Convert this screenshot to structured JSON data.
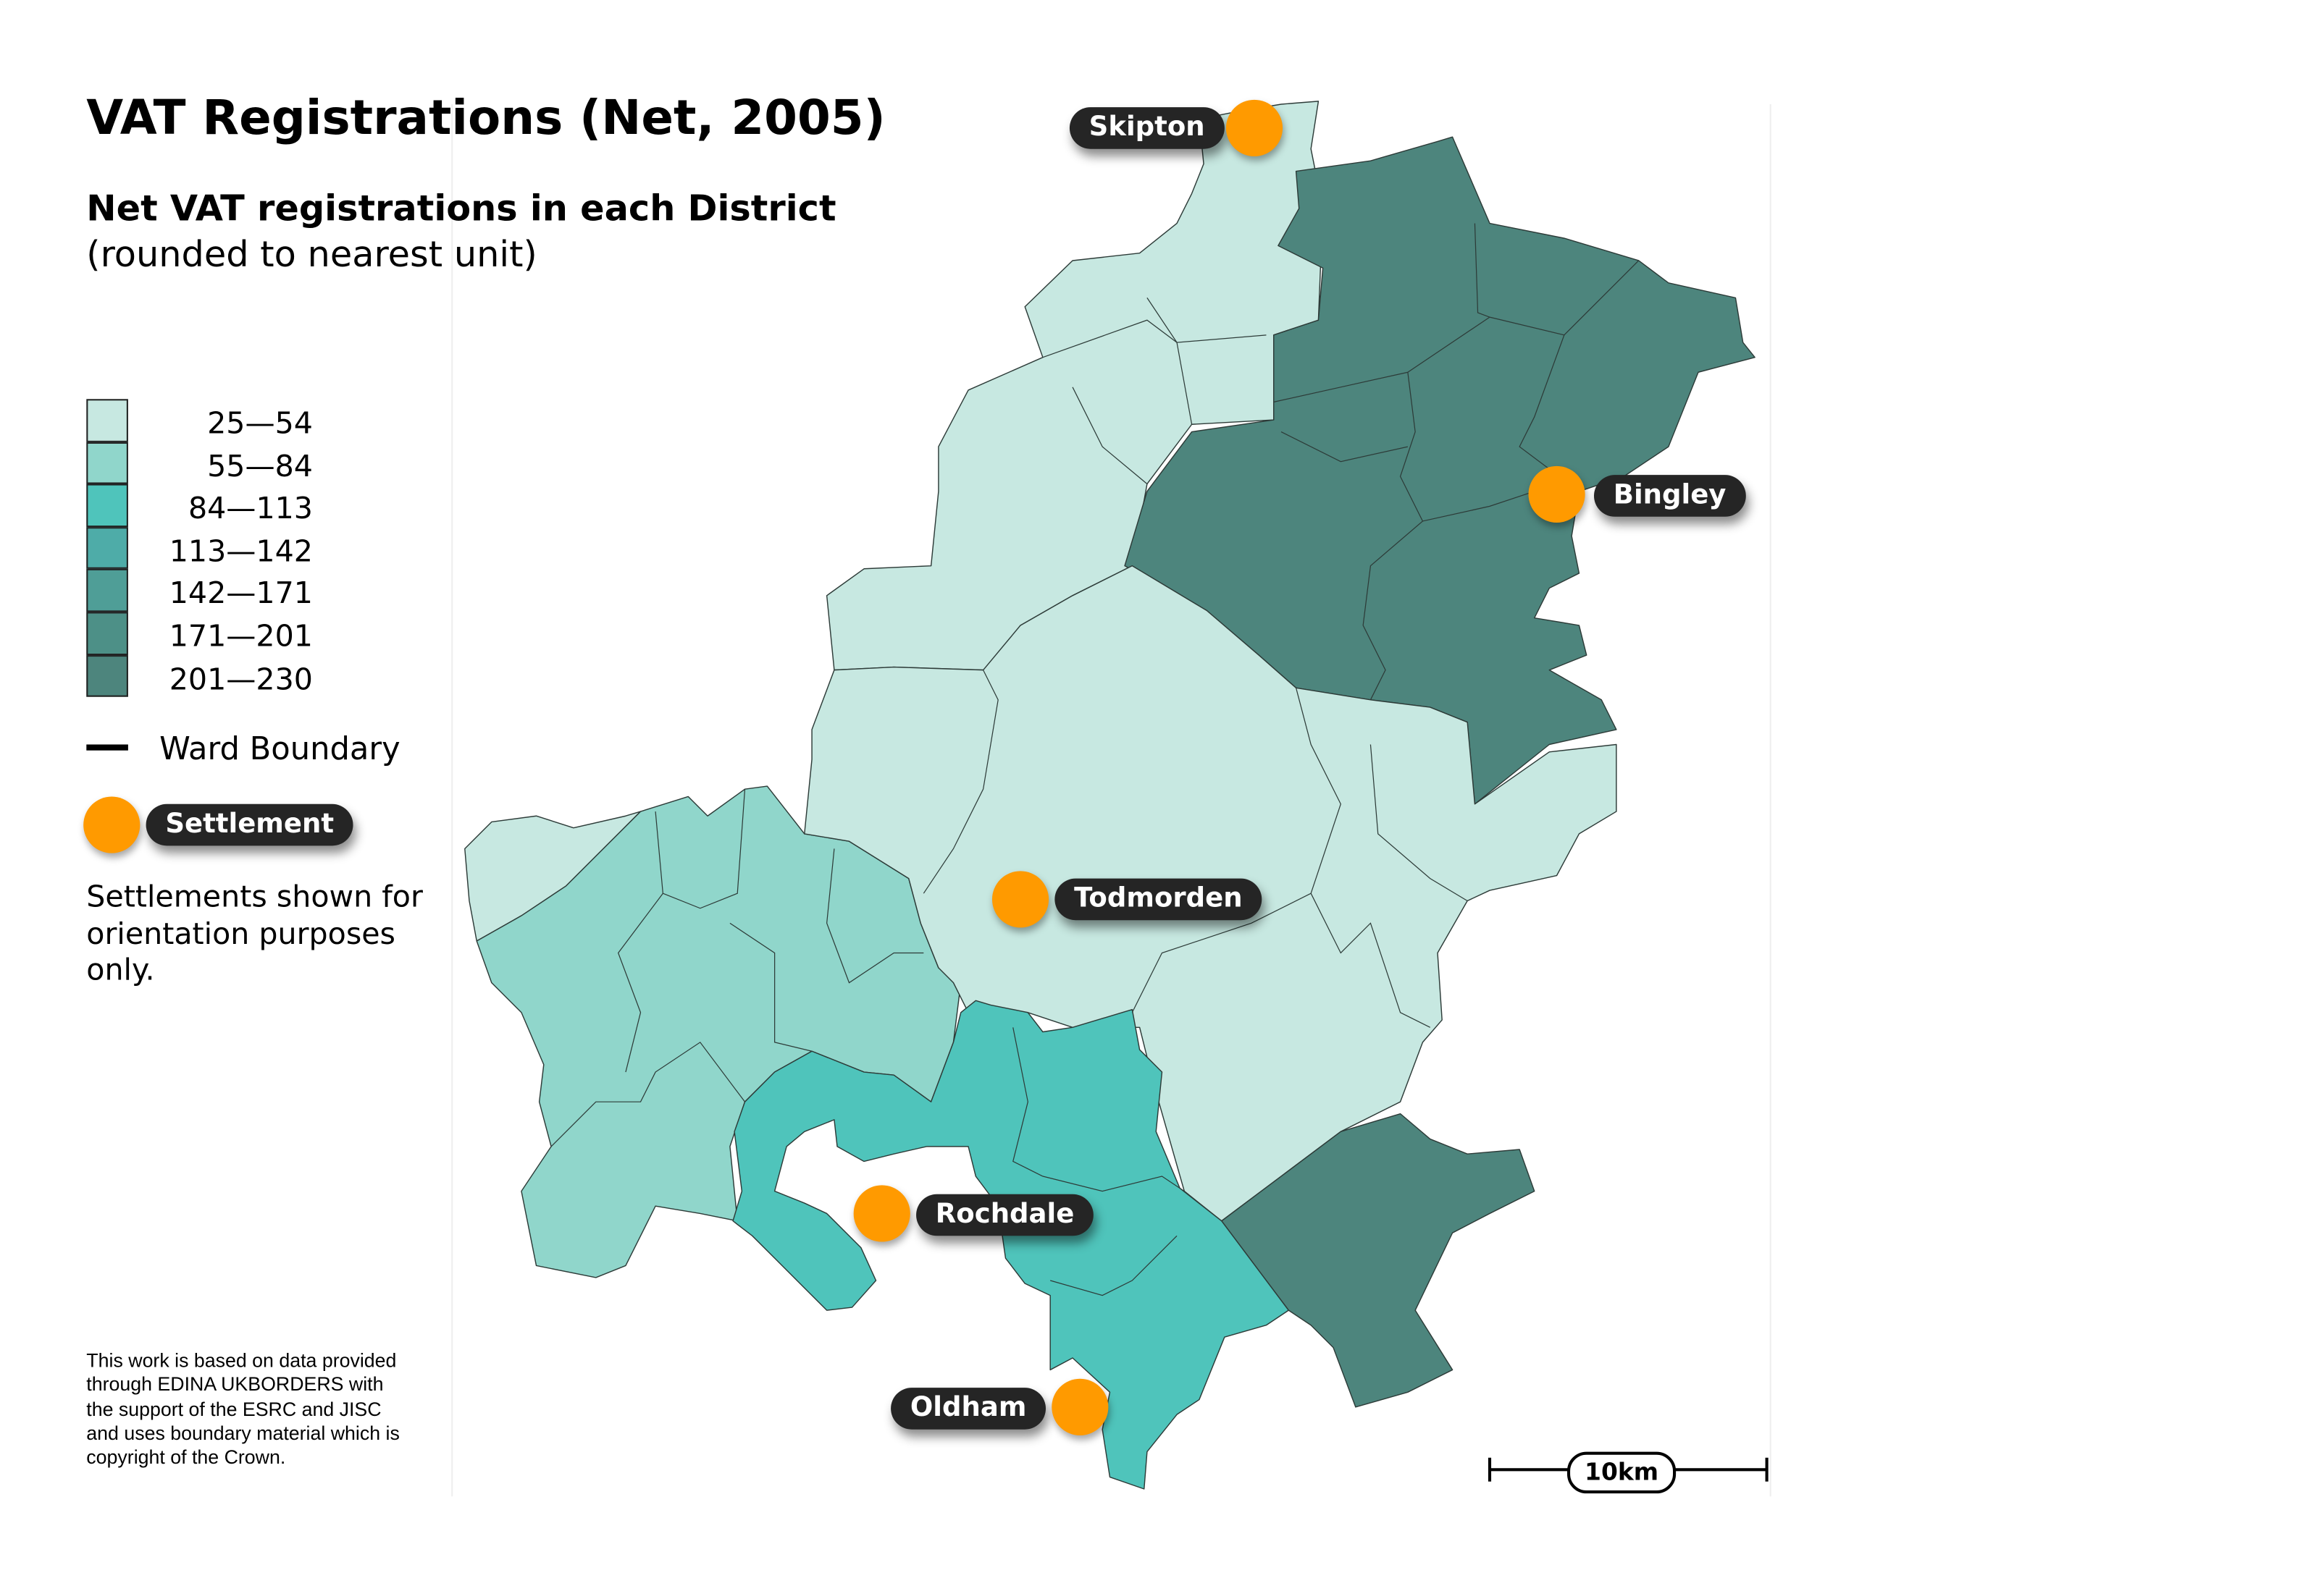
{
  "title": "VAT Registrations (Net, 2005)",
  "subtitle": "Net VAT registrations in each District",
  "subtitle_note": "(rounded to nearest unit)",
  "legend": {
    "classes": [
      {
        "label": "25—54",
        "color": "#c7e8e1"
      },
      {
        "label": "55—84",
        "color": "#90d6cb"
      },
      {
        "label": "84—113",
        "color": "#4fc4bb"
      },
      {
        "label": "113—142",
        "color": "#4eaca8"
      },
      {
        "label": "142—171",
        "color": "#4f9e97"
      },
      {
        "label": "171—201",
        "color": "#4d9087"
      },
      {
        "label": "201—230",
        "color": "#4d857d"
      }
    ],
    "ward_boundary_label": "Ward Boundary",
    "settlement_label": "Settlement",
    "settlement_note": "Settlements shown for orientation purposes only.",
    "settlement_color": "#ff9a00"
  },
  "settlements": [
    "Skipton",
    "Bingley",
    "Todmorden",
    "Rochdale",
    "Oldham"
  ],
  "scale_bar": "10km",
  "footnote": "This work is based on data provided through EDINA UKBORDERS with the support of the ESRC and JISC and uses boundary material which is copyright of the Crown."
}
